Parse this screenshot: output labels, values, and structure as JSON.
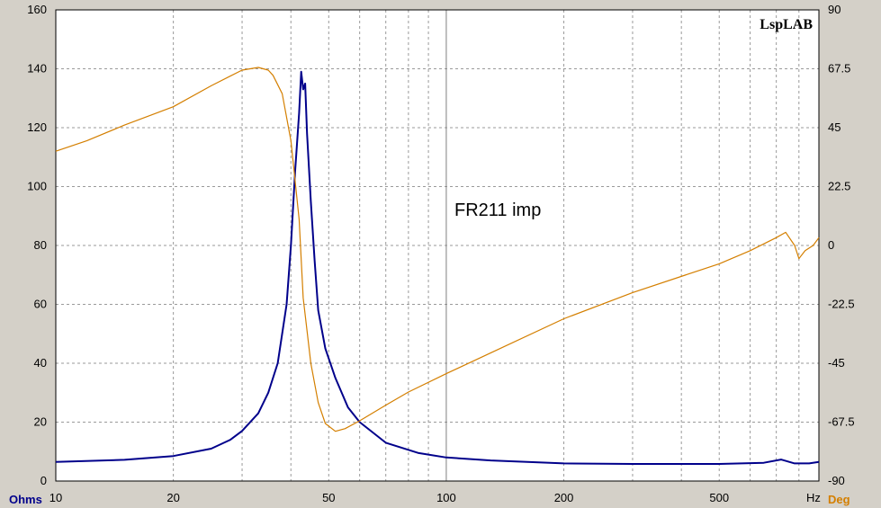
{
  "chart_data": {
    "type": "line",
    "annotation": "FR211 imp",
    "brand": "LspLAB",
    "x_unit": "Hz",
    "x_scale": "log",
    "xlim": [
      10,
      900
    ],
    "x_tick_labels": [
      "10",
      "20",
      "50",
      "100",
      "200",
      "500"
    ],
    "y_left_unit": "Ohms",
    "y_left_lim": [
      0,
      160
    ],
    "y_left_ticks": [
      "0",
      "20",
      "40",
      "60",
      "80",
      "100",
      "120",
      "140",
      "160"
    ],
    "y_right_unit": "Deg",
    "y_right_lim": [
      -90,
      90
    ],
    "y_right_ticks": [
      "-90",
      "-67.5",
      "-45",
      "-22.5",
      "0",
      "22.5",
      "45",
      "67.5",
      "90"
    ],
    "grid": true,
    "series": [
      {
        "axis": "left",
        "color": "#00008b",
        "points": [
          [
            10,
            6.5
          ],
          [
            15,
            7.2
          ],
          [
            20,
            8.5
          ],
          [
            25,
            11
          ],
          [
            28,
            14
          ],
          [
            30,
            17
          ],
          [
            33,
            23
          ],
          [
            35,
            30
          ],
          [
            37,
            40
          ],
          [
            39,
            60
          ],
          [
            40,
            80
          ],
          [
            41,
            105
          ],
          [
            42,
            125
          ],
          [
            42.5,
            139
          ],
          [
            43,
            133
          ],
          [
            43.5,
            135
          ],
          [
            44,
            118
          ],
          [
            45,
            95
          ],
          [
            46,
            75
          ],
          [
            47,
            58
          ],
          [
            49,
            45
          ],
          [
            52,
            35
          ],
          [
            56,
            25
          ],
          [
            60,
            20
          ],
          [
            70,
            13
          ],
          [
            85,
            9.5
          ],
          [
            100,
            8
          ],
          [
            130,
            7
          ],
          [
            200,
            6
          ],
          [
            300,
            5.8
          ],
          [
            500,
            5.8
          ],
          [
            650,
            6.2
          ],
          [
            720,
            7.3
          ],
          [
            780,
            6
          ],
          [
            850,
            6
          ],
          [
            900,
            6.5
          ]
        ]
      },
      {
        "axis": "right",
        "color": "#d47f00",
        "points": [
          [
            10,
            36
          ],
          [
            12,
            40
          ],
          [
            15,
            46
          ],
          [
            20,
            53
          ],
          [
            25,
            61
          ],
          [
            30,
            67
          ],
          [
            33,
            68
          ],
          [
            35,
            67
          ],
          [
            36,
            65
          ],
          [
            38,
            58
          ],
          [
            40,
            40
          ],
          [
            42,
            10
          ],
          [
            43,
            -20
          ],
          [
            45,
            -45
          ],
          [
            47,
            -60
          ],
          [
            49,
            -68
          ],
          [
            52,
            -71
          ],
          [
            55,
            -70
          ],
          [
            60,
            -67
          ],
          [
            70,
            -61
          ],
          [
            80,
            -56
          ],
          [
            100,
            -49
          ],
          [
            130,
            -41
          ],
          [
            200,
            -28
          ],
          [
            300,
            -18
          ],
          [
            500,
            -7
          ],
          [
            600,
            -2
          ],
          [
            700,
            3
          ],
          [
            740,
            5
          ],
          [
            780,
            0
          ],
          [
            800,
            -5
          ],
          [
            830,
            -2
          ],
          [
            870,
            0
          ],
          [
            900,
            3
          ]
        ]
      }
    ]
  }
}
